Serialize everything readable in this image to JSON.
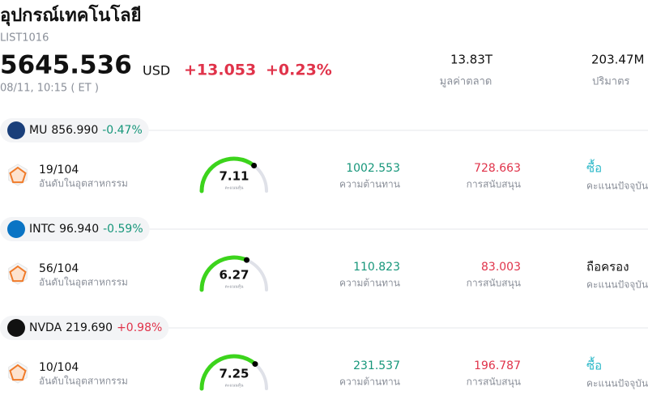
{
  "header": {
    "title": "อุปกรณ์เทคโนโลยี",
    "code": "LIST1016",
    "price": "5645.536",
    "currency": "USD",
    "change": "+13.053",
    "change_pct": "+0.23%",
    "change_color": "#e0334a",
    "time": "08/11, 10:15 ( ET )"
  },
  "stats": [
    {
      "value": "13.83T",
      "label": "มูลค่าตลาด"
    },
    {
      "value": "203.47M",
      "label": "ปริมาตร"
    }
  ],
  "score_range": [
    0,
    10
  ],
  "stocks": [
    {
      "ticker": "MU",
      "price": "856.990",
      "change": "-0.47%",
      "change_color": "#16967a",
      "logo_color": "#1a3f7a",
      "rank": "19/104",
      "rank_label": "อันดับในอุตสาหกรรม",
      "score": 7.11,
      "score_label": "คะแนนหุ้น",
      "resistance": "1002.553",
      "resistance_label": "ความต้านทาน",
      "support": "728.663",
      "support_label": "การสนับสนุน",
      "rating": "ซื้อ",
      "rating_color": "#2bb8c8",
      "rating_label": "คะแนนปัจจุบัน"
    },
    {
      "ticker": "INTC",
      "price": "96.940",
      "change": "-0.59%",
      "change_color": "#16967a",
      "logo_color": "#0a74c4",
      "rank": "56/104",
      "rank_label": "อันดับในอุตสาหกรรม",
      "score": 6.27,
      "score_label": "คะแนนหุ้น",
      "resistance": "110.823",
      "resistance_label": "ความต้านทาน",
      "support": "83.003",
      "support_label": "การสนับสนุน",
      "rating": "ถือครอง",
      "rating_color": "#111111",
      "rating_label": "คะแนนปัจจุบัน"
    },
    {
      "ticker": "NVDA",
      "price": "219.690",
      "change": "+0.98%",
      "change_color": "#e0334a",
      "logo_color": "#111111",
      "rank": "10/104",
      "rank_label": "อันดับในอุตสาหกรรม",
      "score": 7.25,
      "score_label": "คะแนนหุ้น",
      "resistance": "231.537",
      "resistance_label": "ความต้านทาน",
      "support": "196.787",
      "support_label": "การสนับสนุน",
      "rating": "ซื้อ",
      "rating_color": "#2bb8c8",
      "rating_label": "คะแนนปัจจุบัน"
    }
  ]
}
